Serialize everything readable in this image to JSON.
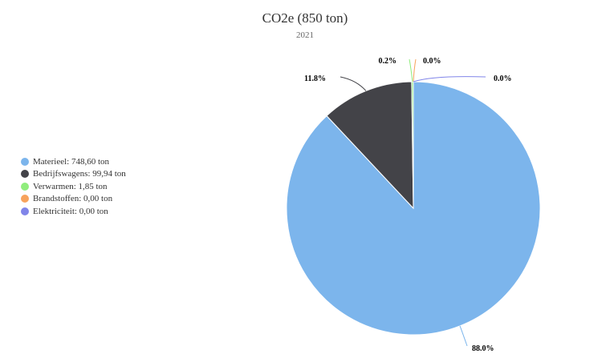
{
  "chart_data": {
    "type": "pie",
    "title": "CO2e (850 ton)",
    "subtitle": "2021",
    "legend_position": "left",
    "series": [
      {
        "name": "Materieel: 748,60 ton",
        "value": 748.6,
        "percent_label": "88.0%",
        "color": "#7cb5ec"
      },
      {
        "name": "Bedrijfswagens: 99,94 ton",
        "value": 99.94,
        "percent_label": "11.8%",
        "color": "#434348"
      },
      {
        "name": "Verwarmen: 1,85 ton",
        "value": 1.85,
        "percent_label": "0.2%",
        "color": "#90ed7d"
      },
      {
        "name": "Brandstoffen: 0,00 ton",
        "value": 0.0,
        "percent_label": "0.0%",
        "color": "#f7a35c"
      },
      {
        "name": "Elektriciteit: 0,00 ton",
        "value": 0.0,
        "percent_label": "0.0%",
        "color": "#8085e9"
      }
    ]
  }
}
